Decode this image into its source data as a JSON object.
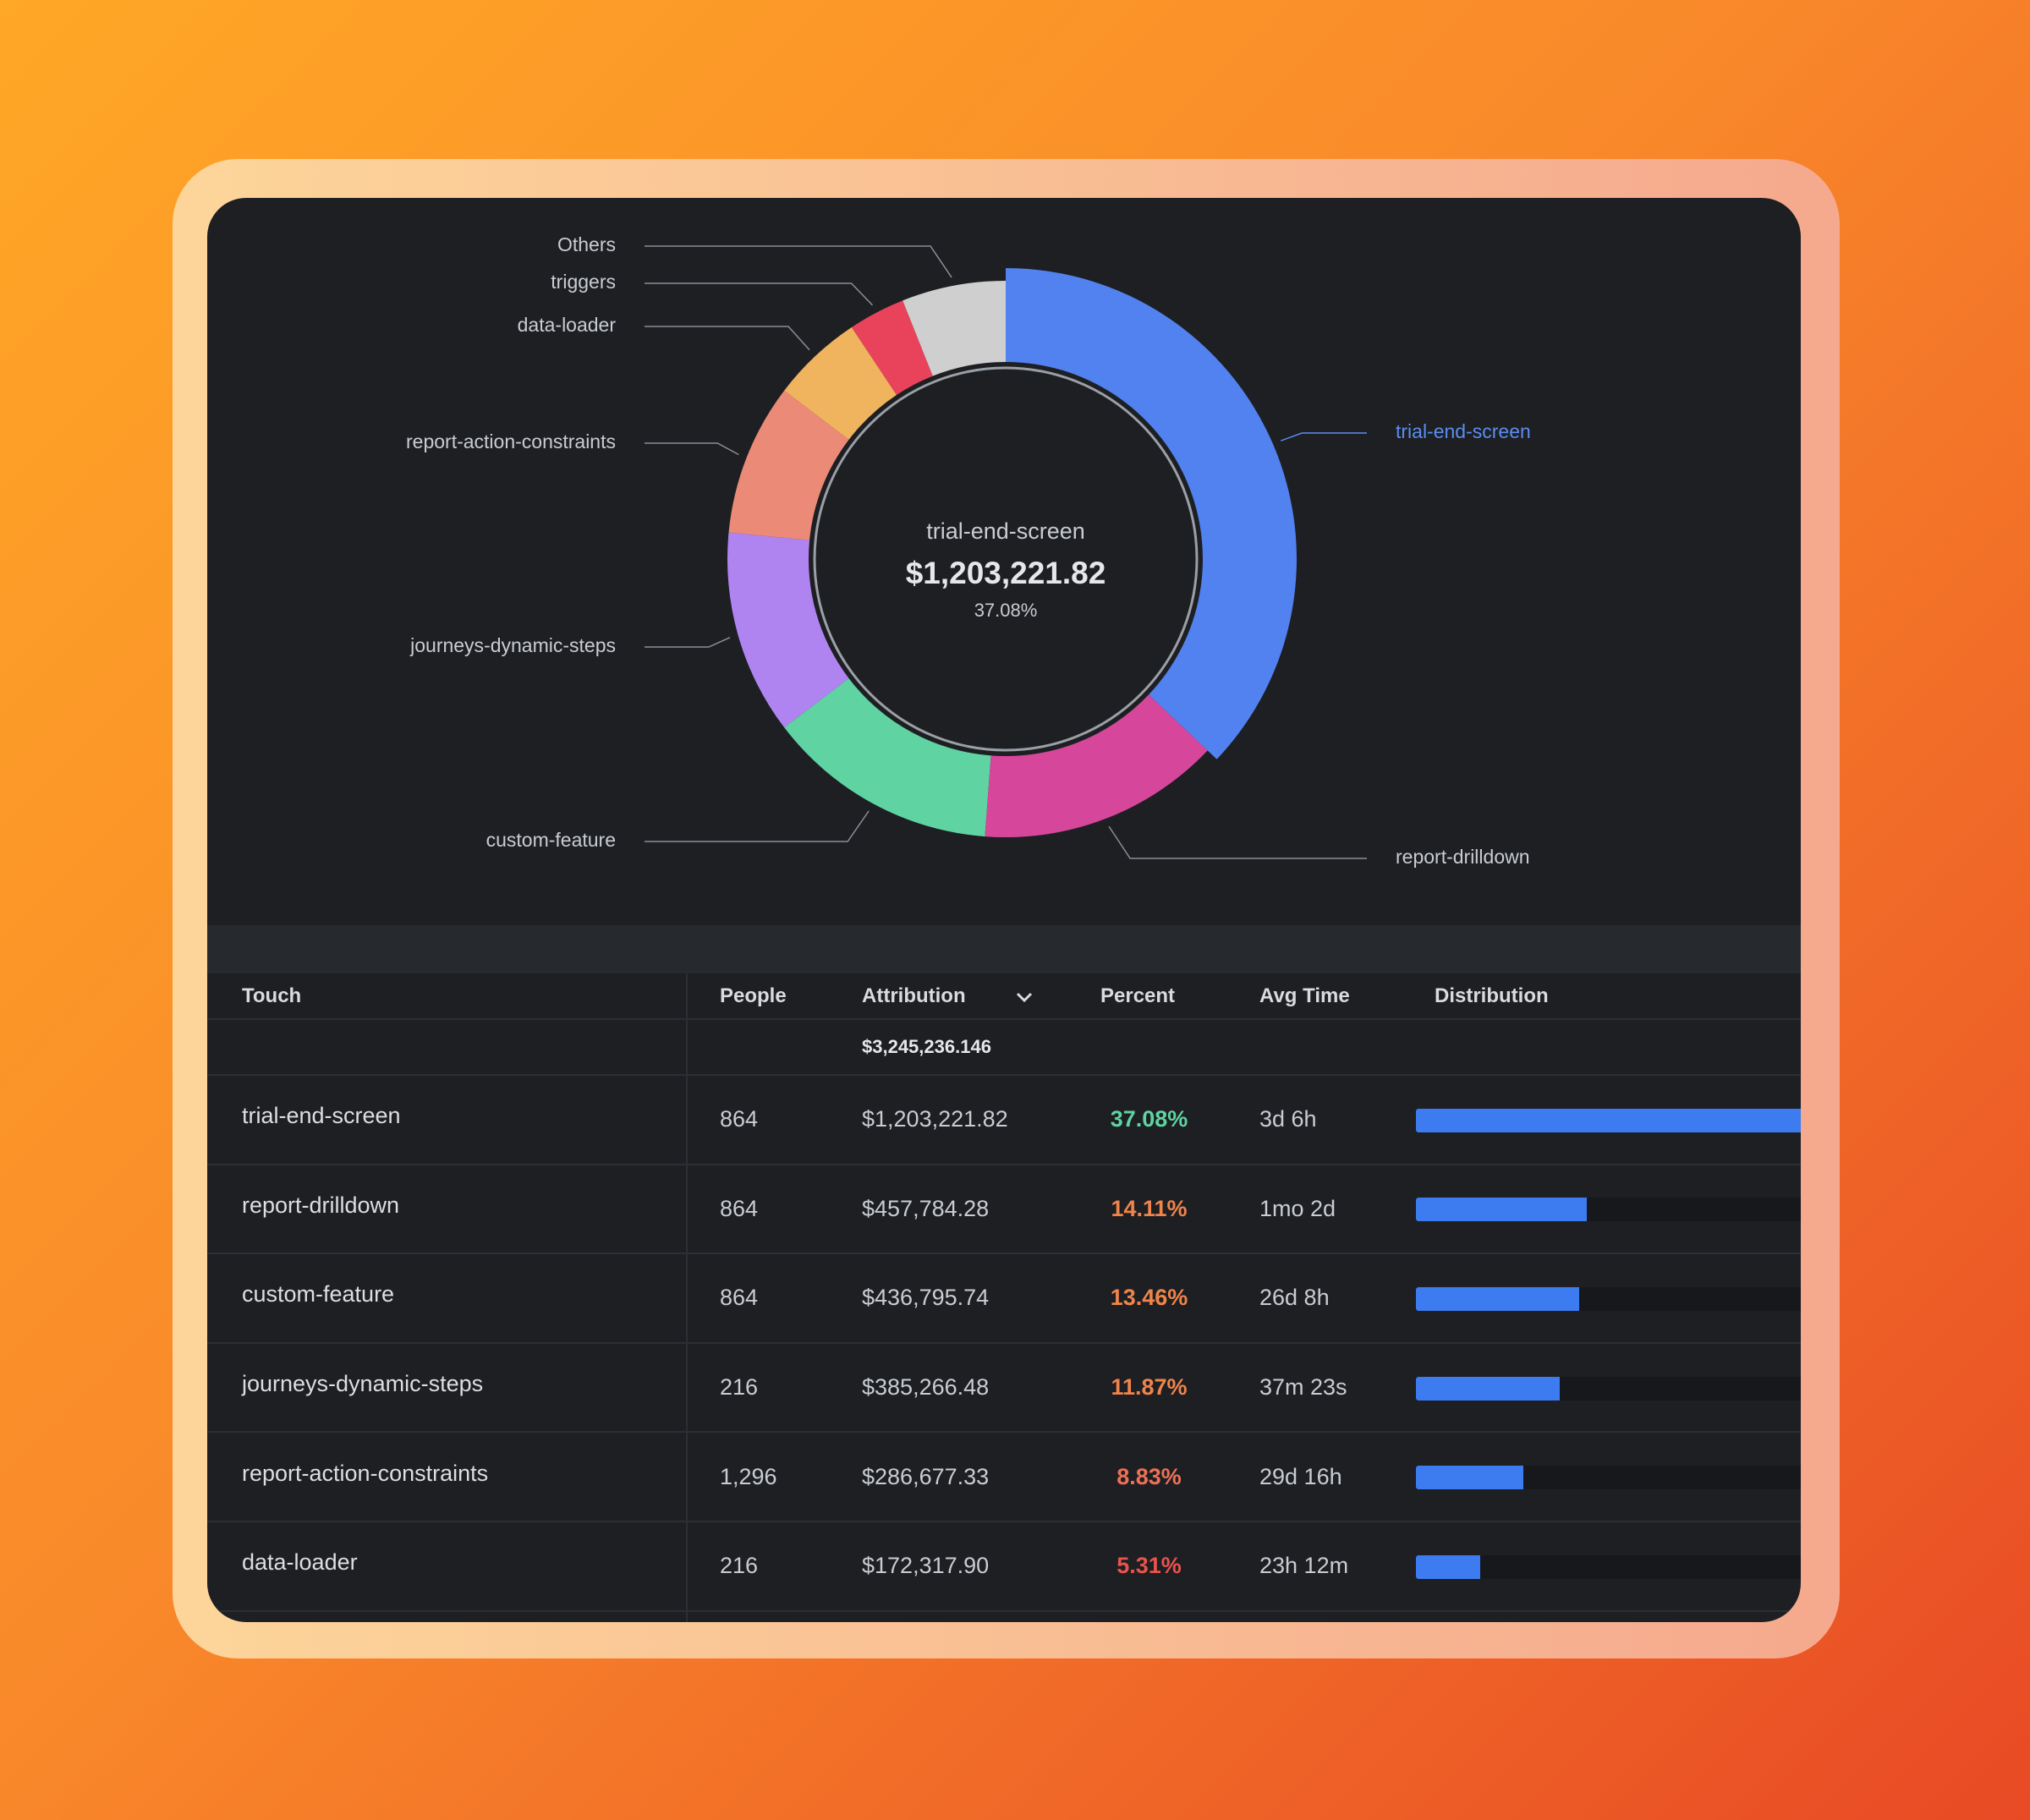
{
  "chart_data": {
    "type": "donut",
    "categories": [
      "trial-end-screen",
      "report-drilldown",
      "custom-feature",
      "journeys-dynamic-steps",
      "report-action-constraints",
      "data-loader",
      "triggers",
      "Others"
    ],
    "values": [
      37.08,
      14.11,
      13.46,
      11.87,
      8.83,
      5.31,
      3.3,
      6.04
    ],
    "colors": [
      "#5282f0",
      "#d6469b",
      "#5fd3a1",
      "#b084f0",
      "#ec8a78",
      "#f0b35e",
      "#e8435a",
      "#cfcfcf"
    ],
    "highlight_color": "#5b8def"
  },
  "table": {
    "columns": [
      "Touch",
      "People",
      "Attribution",
      "Percent",
      "Avg Time",
      "Distribution"
    ],
    "total": "$3,245,236.146",
    "rows": [
      [
        "trial-end-screen",
        "864",
        "$1,203,221.82",
        "37.08%",
        "3d 6h"
      ],
      [
        "report-drilldown",
        "864",
        "$457,784.28",
        "14.11%",
        "1mo 2d"
      ],
      [
        "custom-feature",
        "864",
        "$436,795.74",
        "13.46%",
        "26d 8h"
      ],
      [
        "journeys-dynamic-steps",
        "216",
        "$385,266.48",
        "11.87%",
        "37m 23s"
      ],
      [
        "report-action-constraints",
        "1,296",
        "$286,677.33",
        "8.83%",
        "29d 16h"
      ],
      [
        "data-loader",
        "216",
        "$172,317.90",
        "5.31%",
        "23h 12m"
      ]
    ],
    "percent_colors": [
      "#5fd3a1",
      "#f0844a",
      "#f0844a",
      "#f0844a",
      "#ee7055",
      "#e8534d"
    ]
  }
}
